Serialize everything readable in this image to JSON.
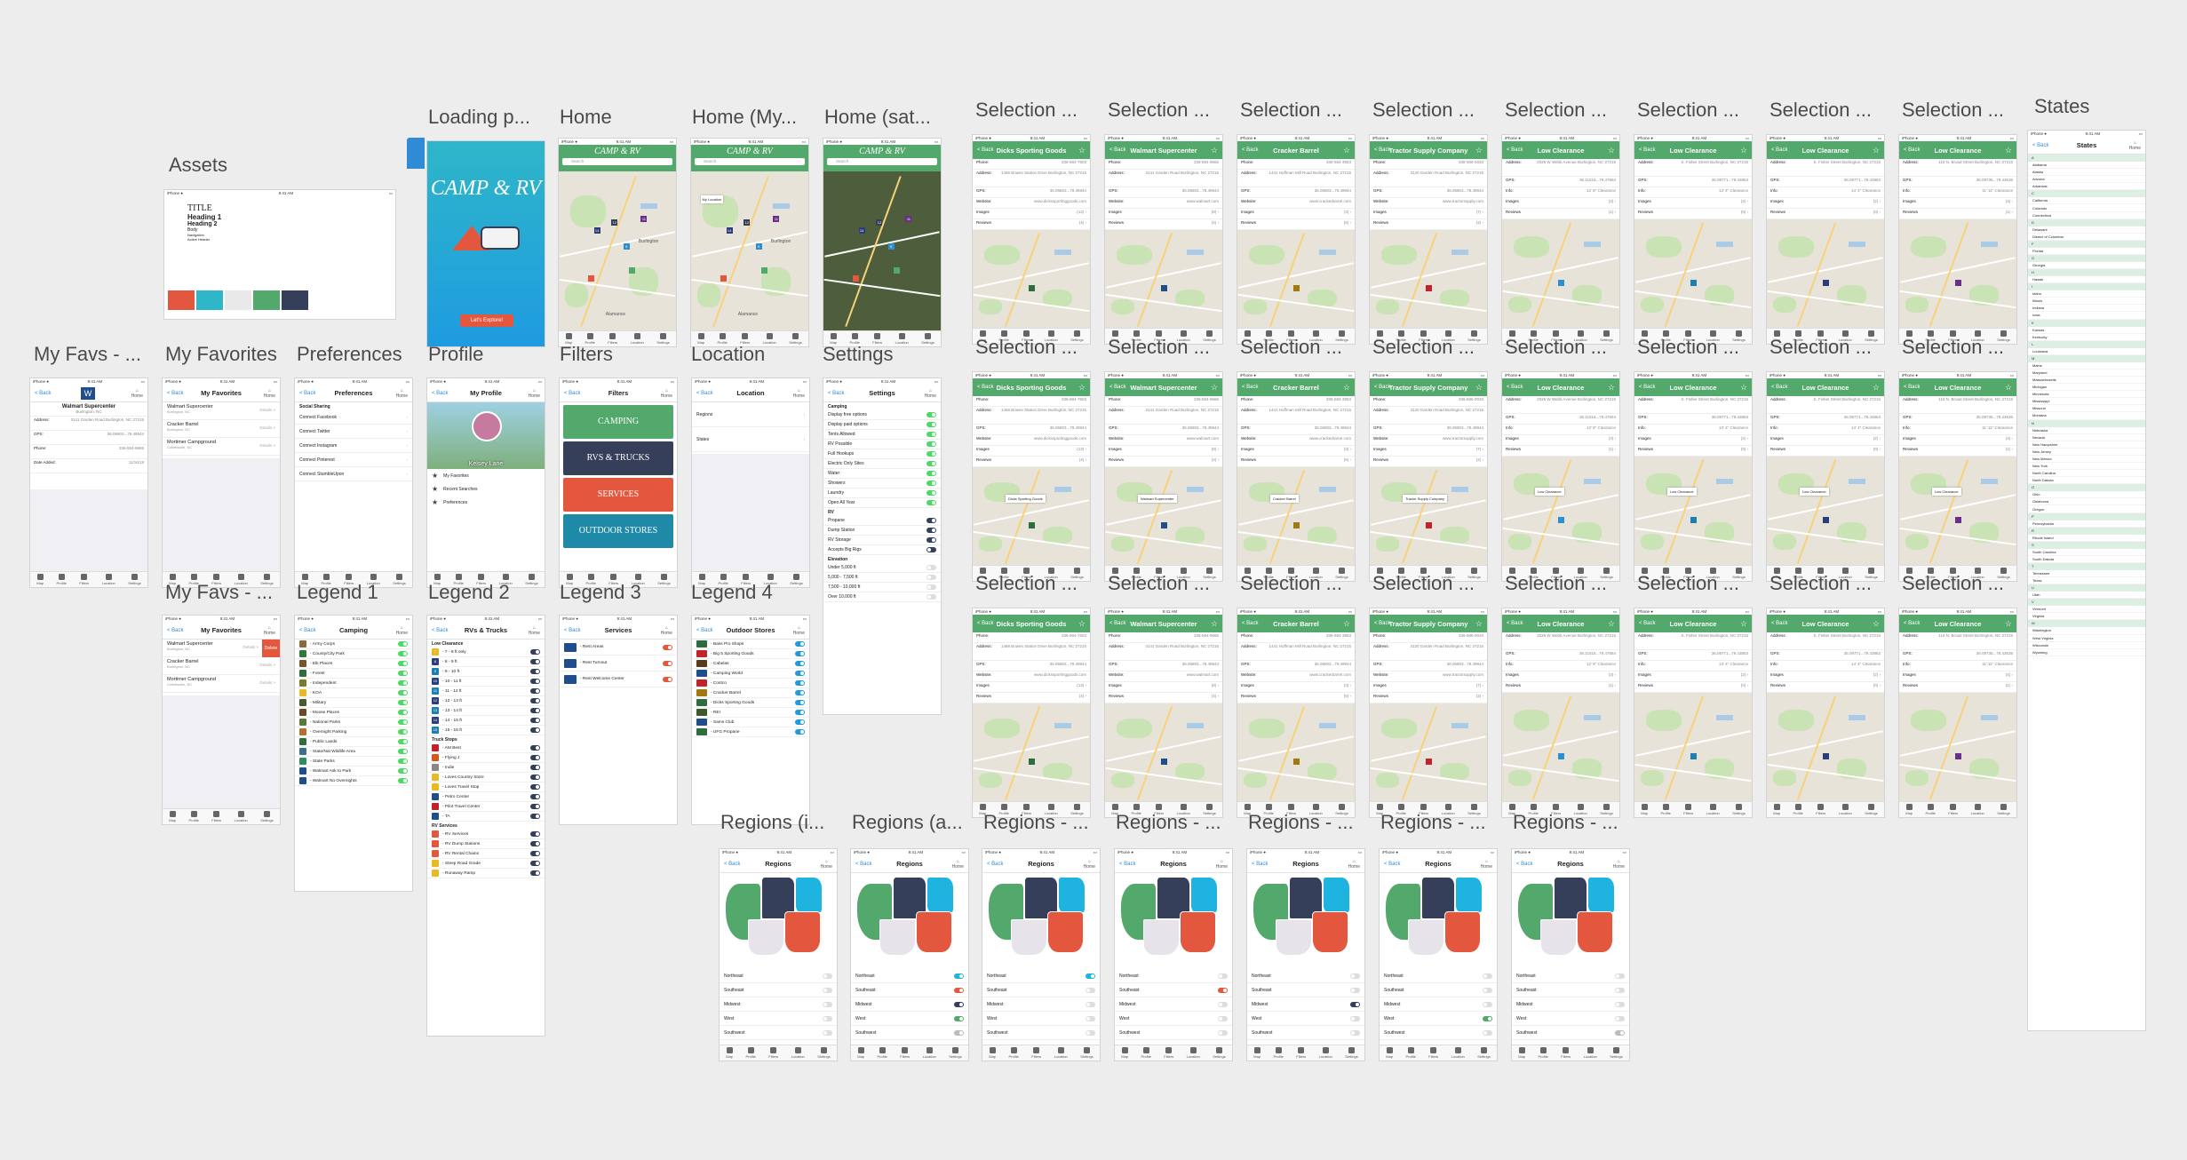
{
  "canvas_labels": {
    "assets": "Assets",
    "loading": "Loading p...",
    "home": "Home",
    "home_my": "Home (My...",
    "home_sat": "Home (sat...",
    "my_favs": "My Favs - ...",
    "my_favorites": "My Favorites",
    "preferences": "Preferences",
    "profile": "Profile",
    "filters": "Filters",
    "location": "Location",
    "settings": "Settings",
    "my_favs2": "My Favs - ...",
    "legend1": "Legend 1",
    "legend2": "Legend 2",
    "legend3": "Legend 3",
    "legend4": "Legend 4",
    "selection": "Selection ...",
    "states": "States",
    "regions_i": "Regions (i...",
    "regions_a": "Regions (a...",
    "regions_dash": "Regions - ..."
  },
  "common": {
    "back": "< Back",
    "home": "Home",
    "tabs": [
      "Map",
      "Profile",
      "Filters",
      "Location",
      "Settings"
    ]
  },
  "colors": {
    "green": "#53a86b",
    "teal": "#2fb6c9",
    "red": "#e4573f",
    "navy": "#353f59",
    "blue": "#1e9be0"
  },
  "assets": {
    "title": "TITLE",
    "h1": "Heading 1",
    "h2": "Heading 2",
    "body": "Body",
    "nav": "Navigation",
    "active": "Active Header",
    "swatches": [
      "#e4573f",
      "#2fb6c9",
      "#e9e9e9",
      "#53a86b",
      "#353f59"
    ]
  },
  "loading": {
    "logo": "CAMP & RV",
    "button": "Let's Explore!"
  },
  "home": {
    "logo": "CAMP & RV",
    "search": "Search",
    "label_city": "Burlington",
    "label_city2": "Alamance",
    "my_location": "My Location"
  },
  "fav_detail": {
    "name": "Walmart Supercenter",
    "city": "Burlington, NC",
    "address_k": "Address:",
    "address": "3141 Garden Road Burlington, NC 27215",
    "gps_k": "GPS:",
    "gps": "36.06803...79.49944",
    "phone_k": "Phone:",
    "phone": "336-584-9665",
    "added_k": "Date Added:",
    "added": "11/16/19"
  },
  "favorites": {
    "title": "My Favorites",
    "items": [
      {
        "name": "Walmart Supercenter",
        "sub": "Burlington, NC"
      },
      {
        "name": "Cracker Barrel",
        "sub": "Burlington, NC"
      },
      {
        "name": "Mortimer Campground",
        "sub": "Collettsville, NC"
      }
    ],
    "details": "Details >",
    "delete": "Delete"
  },
  "preferences": {
    "title": "Preferences",
    "section": "Social Sharing",
    "items": [
      "Connect Facebook",
      "Connect Twitter",
      "Connect Instagram",
      "Connect Pinterest",
      "Connect StumbleUpon"
    ]
  },
  "profile": {
    "title": "My Profile",
    "name": "Kelsey Lane",
    "items": [
      "My Favorites",
      "Recent Searches",
      "Preferences"
    ]
  },
  "filters": {
    "title": "Filters",
    "cards": [
      "CAMPING",
      "RVS & TRUCKS",
      "SERVICES",
      "OUTDOOR STORES"
    ]
  },
  "location": {
    "title": "Location",
    "items": [
      "Regions",
      "States"
    ]
  },
  "settings": {
    "title": "Settings",
    "camping_h": "Camping",
    "camping": [
      "Display free options",
      "Display paid options",
      "Tents Allowed",
      "RV Possible",
      "Full Hookups",
      "Electric Only Sites",
      "Water",
      "Showers",
      "Laundry",
      "Open All Year"
    ],
    "rv_h": "RV",
    "rv": [
      "Propane",
      "Dump Station",
      "RV Storage",
      "Accepts Big Rigs"
    ],
    "elev_h": "Elevation",
    "elev": [
      "Under 5,000 ft",
      "5,000 - 7,500 ft",
      "7,500 - 10,000 ft",
      "Over 10,000 ft"
    ]
  },
  "legend1": {
    "title": "Camping",
    "items": [
      "Army Corps",
      "County/City Park",
      "Elk Places",
      "Forest",
      "Independent",
      "KOA",
      "Military",
      "Moose Places",
      "National Parks",
      "Overnight Parking",
      "Public Lands",
      "State/Nat Wildlife Area",
      "State Parks",
      "Walmart Ask to Park",
      "Walmart No Overnights"
    ]
  },
  "legend2": {
    "title": "RVs & Trucks",
    "low_h": "Low Clearance",
    "low": [
      "7 - 8 ft only",
      "8 - 9 ft",
      "9 - 10 ft",
      "10 - 11 ft",
      "11 - 12 ft",
      "12 - 13 ft",
      "13 - 14 ft",
      "14 - 15 ft",
      "15 - 16 ft"
    ],
    "low_nums": [
      "7",
      "8",
      "9",
      "10",
      "11",
      "12",
      "13",
      "14",
      "15"
    ],
    "truck_h": "Truck Stops",
    "truck": [
      "AM Best",
      "Flying J",
      "Indie",
      "Loves Country Store",
      "Loves Travel Stop",
      "Petro Center",
      "Pilot Travel Center",
      "TA"
    ],
    "service_h": "RV Services",
    "service": [
      "RV Services",
      "RV Dump Stations",
      "RV Rental Chains",
      "Steep Road Grade",
      "Runaway Ramp"
    ]
  },
  "legend3": {
    "title": "Services",
    "items": [
      "Rest Areas",
      "Rest Turnout",
      "Rest Welcome Center"
    ]
  },
  "legend4": {
    "title": "Outdoor Stores",
    "items": [
      "Bass Pro Shops",
      "Big 5 Sporting Goods",
      "Cabelas",
      "Camping World",
      "Costco",
      "Cracker Barrel",
      "Dicks Sporting Goods",
      "REI",
      "Sams Club",
      "UFG Propane"
    ]
  },
  "selection": {
    "phone_k": "Phone:",
    "address_k": "Address:",
    "gps_k": "GPS:",
    "website_k": "Website:",
    "images_k": "Images",
    "reviews_k": "Reviews",
    "info_k": "Info:",
    "places": [
      {
        "name": "Dicks Sporting Goods",
        "phone": "336-584-7603",
        "address": "1466 Bowes Station Drive Burlington, NC 27215",
        "gps": "36.06803...79.49944",
        "website": "www.dickssportinggoods.com",
        "images": "(13)",
        "reviews": "(4)",
        "pin": "#2e6e3e"
      },
      {
        "name": "Walmart Supercenter",
        "phone": "336-584-9665",
        "address": "3141 Garden Road Burlington, NC 27215",
        "gps": "36.06803...79.49944",
        "website": "www.walmart.com",
        "images": "(8)",
        "reviews": "(4)",
        "pin": "#1e4e8e"
      },
      {
        "name": "Cracker Barrel",
        "phone": "336-584-3853",
        "address": "1441 Huffman Mill Road Burlington, NC 27215",
        "gps": "36.06803...79.49944",
        "website": "www.crackerbarrel.com",
        "images": "(3)",
        "reviews": "(5)",
        "pin": "#a07a10"
      },
      {
        "name": "Tractor Supply Company",
        "phone": "336-586-0033",
        "address": "3120 Garden Road Burlington, NC 27215",
        "gps": "36.06803...79.49944",
        "website": "www.tractorsupply.com",
        "images": "(7)",
        "reviews": "(2)",
        "pin": "#c0242a"
      },
      {
        "name": "Low Clearance",
        "phone": "",
        "address": "2026 W Webb Avenue Burlington, NC 27215",
        "gps": "36.11516...79.47664",
        "info": "12' 8\" Clearance",
        "images": "(3)",
        "reviews": "(1)",
        "pin": "#2c8fcf"
      },
      {
        "name": "Low Clearance",
        "phone": "",
        "address": "S. Fisher Street Burlington, NC 27215",
        "gps": "36.09771...79.43863",
        "info": "13' 4\" Clearance",
        "images": "(2)",
        "reviews": "(0)",
        "pin": "#1c7fb0"
      },
      {
        "name": "Low Clearance",
        "phone": "",
        "address": "S. Fisher Street Burlington, NC 27215",
        "gps": "36.09771...79.43863",
        "info": "14' 4\" Clearance",
        "images": "(2)",
        "reviews": "(0)",
        "pin": "#2b3d7a"
      },
      {
        "name": "Low Clearance",
        "phone": "",
        "address": "118 N. Broad Street Burlington, NC 27215",
        "gps": "36.09735...79.43636",
        "info": "11' 11\" Clearance",
        "images": "(4)",
        "reviews": "(1)",
        "pin": "#6a2f8a"
      }
    ]
  },
  "regions": {
    "title": "Regions",
    "items": [
      "Northeast",
      "Southeast",
      "Midwest",
      "West",
      "Southwest"
    ]
  },
  "states": {
    "title": "States",
    "groups": [
      {
        "l": "A",
        "s": [
          "Alabama",
          "Alaska",
          "Arizona",
          "Arkansas"
        ]
      },
      {
        "l": "C",
        "s": [
          "California",
          "Colorado",
          "Connecticut"
        ]
      },
      {
        "l": "D",
        "s": [
          "Delaware",
          "District of Columbia"
        ]
      },
      {
        "l": "F",
        "s": [
          "Florida"
        ]
      },
      {
        "l": "G",
        "s": [
          "Georgia"
        ]
      },
      {
        "l": "H",
        "s": [
          "Hawaii"
        ]
      },
      {
        "l": "I",
        "s": [
          "Idaho",
          "Illinois",
          "Indiana",
          "Iowa"
        ]
      },
      {
        "l": "K",
        "s": [
          "Kansas",
          "Kentucky"
        ]
      },
      {
        "l": "L",
        "s": [
          "Louisiana"
        ]
      },
      {
        "l": "M",
        "s": [
          "Maine",
          "Maryland",
          "Massachusetts",
          "Michigan",
          "Minnesota",
          "Mississippi",
          "Missouri",
          "Montana"
        ]
      },
      {
        "l": "N",
        "s": [
          "Nebraska",
          "Nevada",
          "New Hampshire",
          "New Jersey",
          "New Mexico",
          "New York",
          "North Carolina",
          "North Dakota"
        ]
      },
      {
        "l": "O",
        "s": [
          "Ohio",
          "Oklahoma",
          "Oregon"
        ]
      },
      {
        "l": "P",
        "s": [
          "Pennsylvania"
        ]
      },
      {
        "l": "R",
        "s": [
          "Rhode Island"
        ]
      },
      {
        "l": "S",
        "s": [
          "South Carolina",
          "South Dakota"
        ]
      },
      {
        "l": "T",
        "s": [
          "Tennessee",
          "Texas"
        ]
      },
      {
        "l": "U",
        "s": [
          "Utah"
        ]
      },
      {
        "l": "V",
        "s": [
          "Vermont",
          "Virginia"
        ]
      },
      {
        "l": "W",
        "s": [
          "Washington",
          "West Virginia",
          "Wisconsin",
          "Wyoming"
        ]
      }
    ]
  }
}
